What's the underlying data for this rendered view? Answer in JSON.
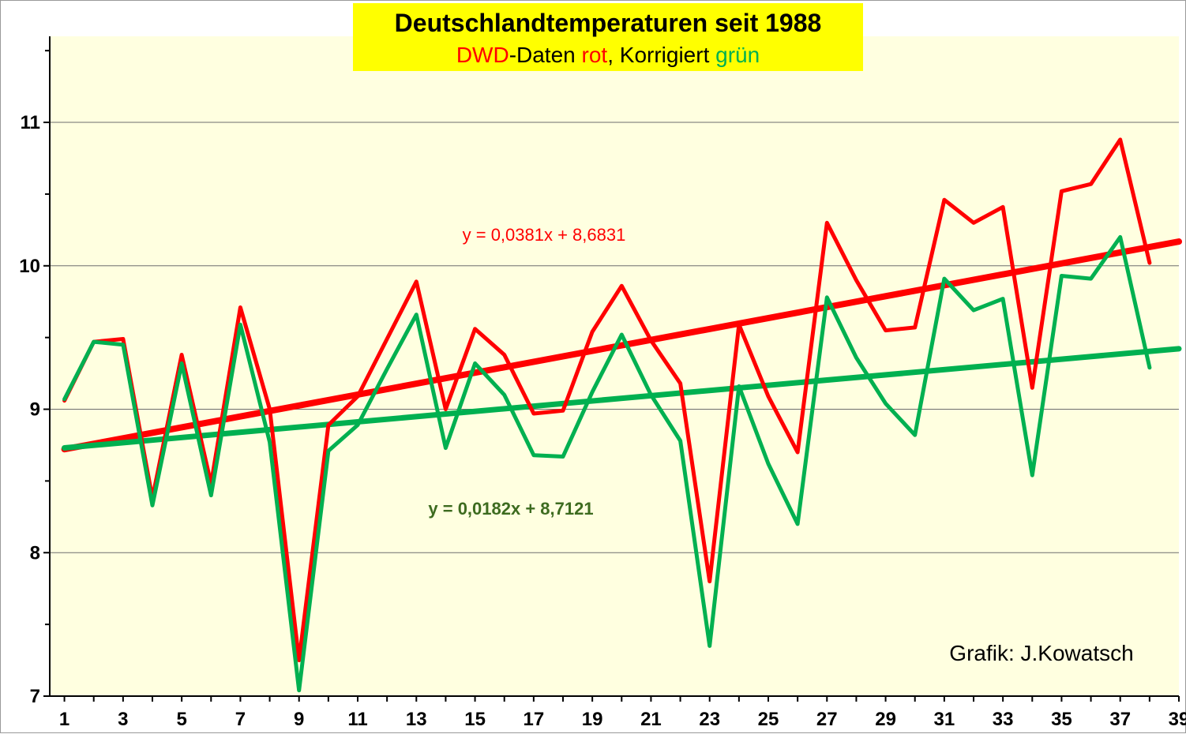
{
  "chart_data": {
    "type": "line",
    "title": "Deutschlandtemperaturen seit 1988",
    "subtitle_parts": [
      {
        "text": "DWD",
        "color": "#ff0000"
      },
      {
        "text": "-Daten ",
        "color": "#000000"
      },
      {
        "text": "rot",
        "color": "#ff0000"
      },
      {
        "text": ", Korrigiert ",
        "color": "#000000"
      },
      {
        "text": "grün",
        "color": "#00b050"
      }
    ],
    "credit": "Grafik: J.Kowatsch",
    "xlim": [
      0.5,
      39
    ],
    "ylim": [
      7,
      11.6
    ],
    "x_tick_labels": [
      "1",
      "3",
      "5",
      "7",
      "9",
      "11",
      "13",
      "15",
      "17",
      "19",
      "21",
      "23",
      "25",
      "27",
      "29",
      "31",
      "33",
      "35",
      "37",
      "39"
    ],
    "y_tick_labels": [
      "7",
      "8",
      "9",
      "10",
      "11"
    ],
    "x": [
      1,
      2,
      3,
      4,
      5,
      6,
      7,
      8,
      9,
      10,
      11,
      12,
      13,
      14,
      15,
      16,
      17,
      18,
      19,
      20,
      21,
      22,
      23,
      24,
      25,
      26,
      27,
      28,
      29,
      30,
      31,
      32,
      33,
      34,
      35,
      36,
      37,
      38
    ],
    "series": [
      {
        "color": "#ff0000",
        "values": [
          9.06,
          9.47,
          9.49,
          8.38,
          9.38,
          8.48,
          9.71,
          9.0,
          7.25,
          8.89,
          9.09,
          9.49,
          9.89,
          9.0,
          9.56,
          9.38,
          8.97,
          8.99,
          9.54,
          9.86,
          9.48,
          9.18,
          7.8,
          9.59,
          9.09,
          8.7,
          10.3,
          9.9,
          9.55,
          9.57,
          10.46,
          10.3,
          10.41,
          9.15,
          10.52,
          10.57,
          10.88,
          10.02
        ]
      },
      {
        "color": "#00b050",
        "values": [
          9.07,
          9.47,
          9.45,
          8.33,
          9.32,
          8.4,
          9.59,
          8.77,
          7.04,
          8.71,
          8.89,
          9.28,
          9.66,
          8.73,
          9.32,
          9.1,
          8.68,
          8.67,
          9.12,
          9.52,
          9.1,
          8.78,
          7.35,
          9.16,
          8.62,
          8.2,
          9.78,
          9.36,
          9.04,
          8.82,
          9.91,
          9.69,
          9.77,
          8.54,
          9.93,
          9.91,
          10.2,
          9.29
        ]
      }
    ],
    "trendlines": [
      {
        "color": "#ff0000",
        "slope": 0.0381,
        "intercept": 8.6831,
        "label": "y = 0,0381x + 8,6831",
        "x_from": 1,
        "x_to": 39
      },
      {
        "color": "#00b050",
        "slope": 0.0182,
        "intercept": 8.7121,
        "label": "y = 0,0182x + 8,7121",
        "x_from": 1,
        "x_to": 39
      }
    ],
    "grid": true,
    "legend": "none"
  }
}
